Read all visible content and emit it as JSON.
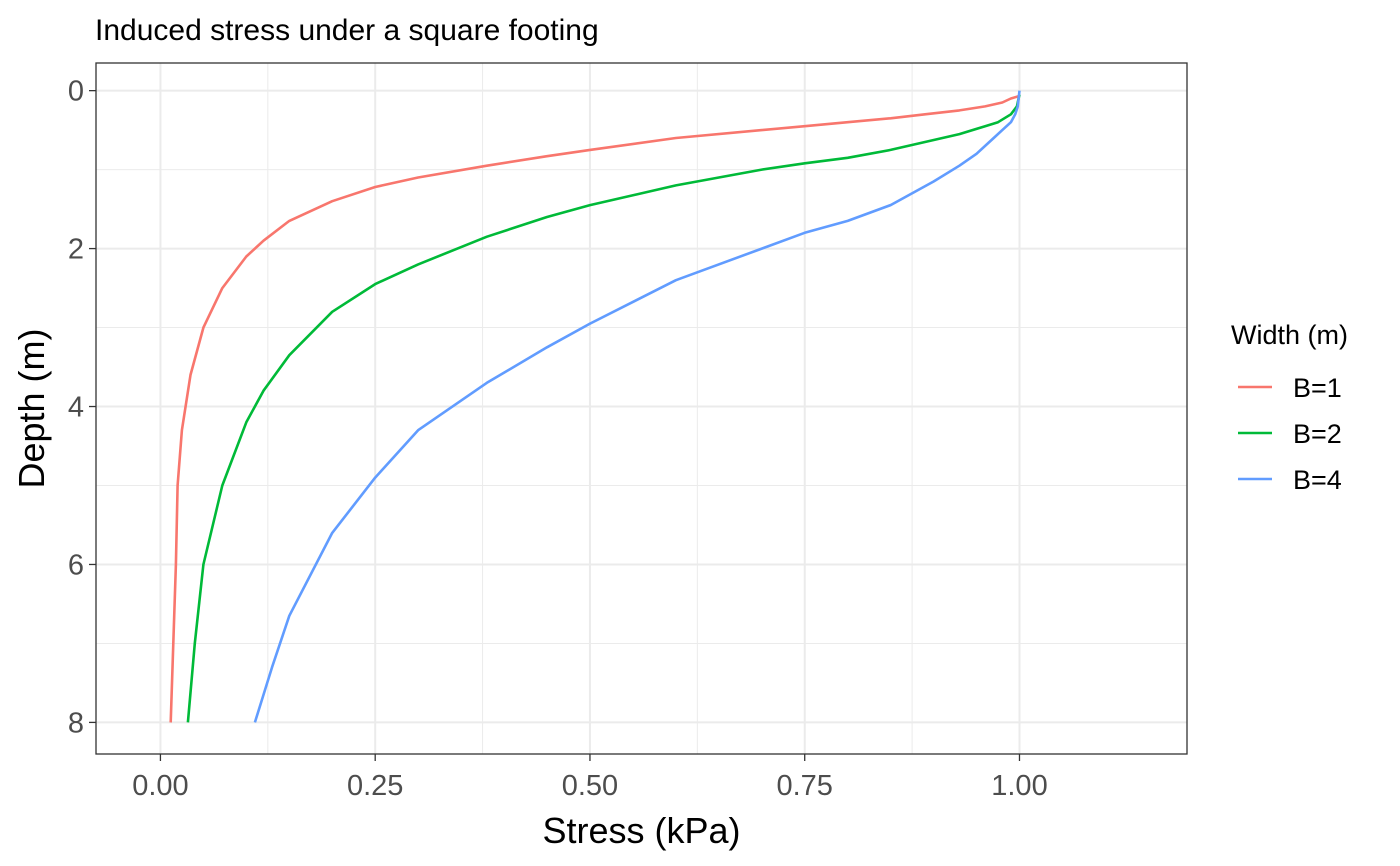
{
  "chart_data": {
    "type": "line",
    "title": "Induced stress under a square footing",
    "xlabel": "Stress (kPa)",
    "ylabel": "Depth (m)",
    "xlim": [
      -0.075,
      1.195
    ],
    "ylim": [
      -0.35,
      8.4
    ],
    "y_reversed": true,
    "xticks": [
      0,
      0.25,
      0.5,
      0.75,
      1
    ],
    "xtick_labels": [
      "0.00",
      "0.25",
      "0.50",
      "0.75",
      "1.00"
    ],
    "yticks": [
      0,
      2,
      4,
      6,
      8
    ],
    "ytick_labels": [
      "0",
      "2",
      "4",
      "6",
      "8"
    ],
    "grid": true,
    "legend": {
      "title": "Width (m)",
      "position": "right"
    },
    "series": [
      {
        "name": "B=1",
        "color": "#F8766D",
        "x": [
          1.0,
          0.999,
          0.99,
          0.98,
          0.96,
          0.93,
          0.89,
          0.85,
          0.8,
          0.75,
          0.7,
          0.6,
          0.5,
          0.45,
          0.38,
          0.3,
          0.25,
          0.2,
          0.15,
          0.12,
          0.1,
          0.072,
          0.05,
          0.035,
          0.025,
          0.02,
          0.018,
          0.015,
          0.012
        ],
        "y": [
          0.05,
          0.07,
          0.1,
          0.15,
          0.2,
          0.25,
          0.3,
          0.35,
          0.4,
          0.45,
          0.5,
          0.6,
          0.75,
          0.83,
          0.95,
          1.1,
          1.22,
          1.4,
          1.65,
          1.9,
          2.1,
          2.5,
          3.0,
          3.6,
          4.3,
          5.0,
          6.0,
          7.0,
          8.0
        ]
      },
      {
        "name": "B=2",
        "color": "#00BA38",
        "x": [
          1.0,
          0.999,
          0.997,
          0.99,
          0.975,
          0.96,
          0.93,
          0.89,
          0.85,
          0.8,
          0.75,
          0.7,
          0.6,
          0.5,
          0.45,
          0.38,
          0.3,
          0.25,
          0.2,
          0.15,
          0.12,
          0.1,
          0.072,
          0.05,
          0.04,
          0.032
        ],
        "y": [
          0.05,
          0.1,
          0.2,
          0.3,
          0.4,
          0.45,
          0.55,
          0.65,
          0.75,
          0.85,
          0.92,
          1.0,
          1.2,
          1.45,
          1.6,
          1.85,
          2.2,
          2.45,
          2.8,
          3.35,
          3.8,
          4.2,
          5.0,
          6.0,
          7.0,
          8.0
        ]
      },
      {
        "name": "B=4",
        "color": "#619CFF",
        "x": [
          1.0,
          0.999,
          0.998,
          0.995,
          0.99,
          0.98,
          0.97,
          0.95,
          0.93,
          0.9,
          0.85,
          0.8,
          0.75,
          0.7,
          0.6,
          0.5,
          0.45,
          0.38,
          0.3,
          0.25,
          0.2,
          0.15,
          0.13,
          0.12,
          0.11
        ],
        "y": [
          0.0,
          0.1,
          0.2,
          0.3,
          0.4,
          0.5,
          0.6,
          0.8,
          0.95,
          1.15,
          1.45,
          1.65,
          1.8,
          2.0,
          2.4,
          2.95,
          3.25,
          3.7,
          4.3,
          4.9,
          5.6,
          6.65,
          7.3,
          7.65,
          8.0
        ]
      }
    ]
  }
}
